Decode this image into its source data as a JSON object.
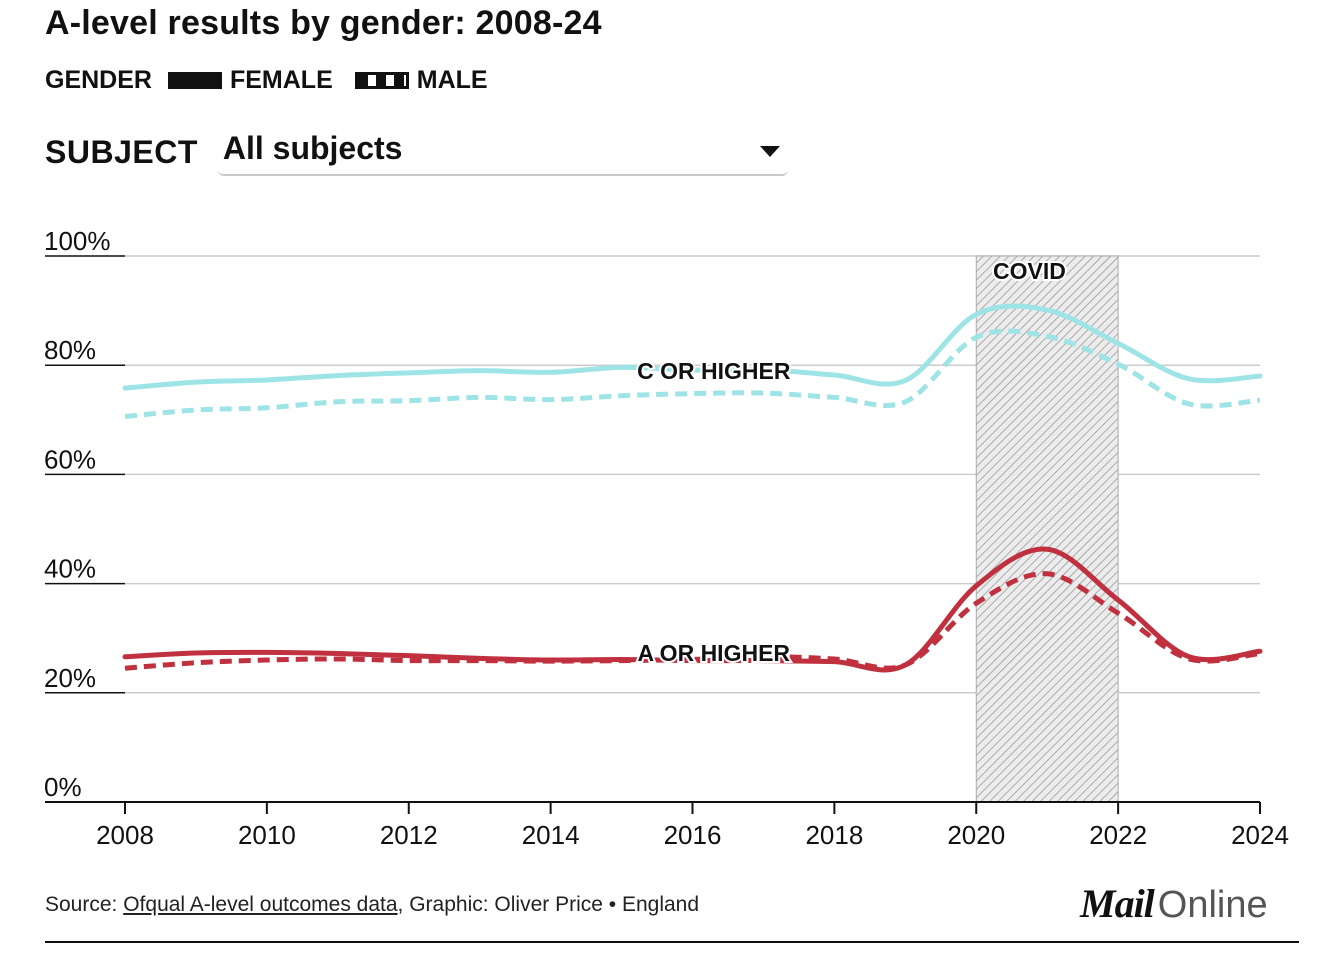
{
  "title": "A-level results by gender: 2008-24",
  "legend": {
    "title": "GENDER",
    "items": [
      {
        "label": "FEMALE",
        "style": "solid"
      },
      {
        "label": "MALE",
        "style": "dashed"
      }
    ]
  },
  "subject": {
    "label": "SUBJECT",
    "selected": "All subjects"
  },
  "source": {
    "prefix": "Source: ",
    "link_text": "Ofqual A-level outcomes data",
    "suffix": ", Graphic: Oliver Price • England"
  },
  "brand": {
    "mail": "Mail",
    "online": "Online"
  },
  "colors": {
    "c_or_higher": "#9ee4e6",
    "a_or_higher": "#c0303e",
    "axis": "#111111",
    "grid": "#cccccc"
  },
  "chart_data": {
    "type": "line",
    "title": "A-level results by gender: 2008-24",
    "xlabel": "",
    "ylabel": "",
    "xlim": [
      2008,
      2024
    ],
    "ylim": [
      0,
      100
    ],
    "y_ticks": [
      "0%",
      "20%",
      "40%",
      "60%",
      "80%",
      "100%"
    ],
    "x_ticks": [
      "2008",
      "2010",
      "2012",
      "2014",
      "2016",
      "2018",
      "2020",
      "2022",
      "2024"
    ],
    "grid": true,
    "shaded_region": {
      "label": "COVID",
      "from": 2020,
      "to": 2022
    },
    "x": [
      2008,
      2009,
      2010,
      2011,
      2012,
      2013,
      2014,
      2015,
      2016,
      2017,
      2018,
      2019,
      2020,
      2021,
      2022,
      2023,
      2024
    ],
    "series": [
      {
        "group": "C OR HIGHER",
        "gender": "FEMALE",
        "values": [
          75.8,
          76.9,
          77.3,
          78.1,
          78.6,
          79.0,
          78.7,
          79.6,
          79.1,
          79.2,
          78.2,
          77.2,
          89.3,
          90.1,
          84.0,
          77.5,
          78.0
        ]
      },
      {
        "group": "C OR HIGHER",
        "gender": "MALE",
        "values": [
          70.6,
          71.8,
          72.2,
          73.3,
          73.5,
          74.1,
          73.7,
          74.4,
          74.8,
          74.9,
          74.1,
          73.3,
          85.1,
          85.3,
          80.2,
          72.9,
          73.6
        ]
      },
      {
        "group": "A OR HIGHER",
        "gender": "FEMALE",
        "values": [
          26.6,
          27.3,
          27.4,
          27.2,
          26.8,
          26.3,
          26.0,
          26.1,
          25.9,
          25.9,
          25.7,
          25.1,
          39.6,
          46.3,
          37.0,
          26.6,
          27.6
        ]
      },
      {
        "group": "A OR HIGHER",
        "gender": "MALE",
        "values": [
          24.5,
          25.5,
          26.0,
          26.2,
          25.9,
          25.9,
          25.8,
          25.9,
          26.1,
          26.6,
          26.2,
          25.1,
          36.4,
          41.8,
          34.6,
          26.2,
          27.2
        ]
      }
    ],
    "annotations": [
      {
        "text": "C OR HIGHER",
        "x": 2016.3,
        "y": 77.5
      },
      {
        "text": "A OR HIGHER",
        "x": 2016.3,
        "y": 25.8
      },
      {
        "text": "COVID",
        "x": 2020.75,
        "y": 95.8
      }
    ]
  }
}
